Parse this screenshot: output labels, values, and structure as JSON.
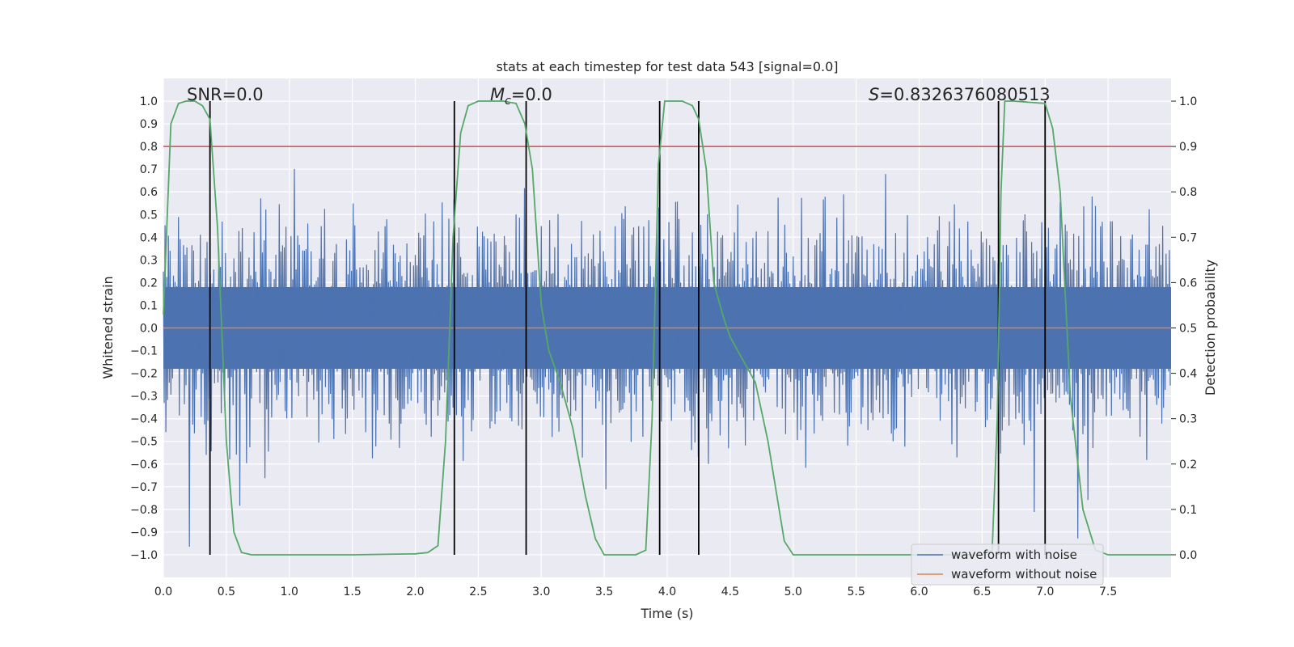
{
  "chart_data": {
    "type": "line",
    "title": "stats at each timestep for test data 543 [signal=0.0]",
    "xlabel": "Time (s)",
    "ylabel": "Whitened strain",
    "ylabel_right": "Detection probability",
    "xlim": [
      0.0,
      8.0
    ],
    "ylim": [
      -1.1,
      1.1
    ],
    "ylim_right": [
      -0.05,
      1.05
    ],
    "x_ticks": [
      0.0,
      0.5,
      1.0,
      1.5,
      2.0,
      2.5,
      3.0,
      3.5,
      4.0,
      4.5,
      5.0,
      5.5,
      6.0,
      6.5,
      7.0,
      7.5
    ],
    "x_tick_labels": [
      "0.0",
      "0.5",
      "1.0",
      "1.5",
      "2.0",
      "2.5",
      "3.0",
      "3.5",
      "4.0",
      "4.5",
      "5.0",
      "5.5",
      "6.0",
      "6.5",
      "7.0",
      "7.5"
    ],
    "y_ticks": [
      -1.0,
      -0.9,
      -0.8,
      -0.7,
      -0.6,
      -0.5,
      -0.4,
      -0.3,
      -0.2,
      -0.1,
      0.0,
      0.1,
      0.2,
      0.3,
      0.4,
      0.5,
      0.6,
      0.7,
      0.8,
      0.9,
      1.0
    ],
    "y_tick_labels": [
      "−1.0",
      "−0.9",
      "−0.8",
      "−0.7",
      "−0.6",
      "−0.5",
      "−0.4",
      "−0.3",
      "−0.2",
      "−0.1",
      "0.0",
      "0.1",
      "0.2",
      "0.3",
      "0.4",
      "0.5",
      "0.6",
      "0.7",
      "0.8",
      "0.9",
      "1.0"
    ],
    "y_right_ticks": [
      0.0,
      0.1,
      0.2,
      0.3,
      0.4,
      0.5,
      0.6,
      0.7,
      0.8,
      0.9,
      1.0
    ],
    "y_right_tick_labels": [
      "0.0",
      "0.1",
      "0.2",
      "0.3",
      "0.4",
      "0.5",
      "0.6",
      "0.7",
      "0.8",
      "0.9",
      "1.0"
    ],
    "annotations": {
      "snr_prefix": "SNR",
      "snr_value": "=0.0",
      "mc_symbol": "M",
      "mc_subscript": "c",
      "mc_value": "=0.0",
      "s_symbol": "S",
      "s_value": "=0.8326376080513"
    },
    "threshold": 0.8,
    "noise_series": {
      "name": "waveform with noise",
      "color": "#4c72b0",
      "num_samples": 1200,
      "core_amplitude": 0.18,
      "typical_peak": 0.62,
      "max_abs": 0.98
    },
    "clean_series": {
      "name": "waveform without noise",
      "color": "#dd8452",
      "value": 0.0
    },
    "probability_series": {
      "name": "detection probability",
      "color": "#55a868",
      "x": [
        0.0,
        0.06,
        0.12,
        0.18,
        0.25,
        0.31,
        0.37,
        0.43,
        0.5,
        0.56,
        0.62,
        0.7,
        1.0,
        1.5,
        2.0,
        2.1,
        2.18,
        2.24,
        2.3,
        2.36,
        2.42,
        2.5,
        2.56,
        2.62,
        2.7,
        2.8,
        2.87,
        2.93,
        3.0,
        3.06,
        3.15,
        3.25,
        3.35,
        3.43,
        3.5,
        3.6,
        3.75,
        3.83,
        3.88,
        3.93,
        3.98,
        4.05,
        4.12,
        4.2,
        4.25,
        4.31,
        4.37,
        4.45,
        4.5,
        4.6,
        4.7,
        4.8,
        4.93,
        5.0,
        5.5,
        6.0,
        6.5,
        6.58,
        6.62,
        6.65,
        6.68,
        6.75,
        7.0,
        7.06,
        7.12,
        7.2,
        7.3,
        7.4,
        7.5,
        8.0
      ],
      "y": [
        0.53,
        0.95,
        0.995,
        1.0,
        1.0,
        0.99,
        0.96,
        0.72,
        0.25,
        0.05,
        0.005,
        0.0,
        0.0,
        0.0,
        0.002,
        0.005,
        0.02,
        0.25,
        0.7,
        0.93,
        0.99,
        1.0,
        1.0,
        1.0,
        1.0,
        0.995,
        0.95,
        0.85,
        0.55,
        0.45,
        0.38,
        0.28,
        0.13,
        0.035,
        0.0,
        0.0,
        0.0,
        0.01,
        0.3,
        0.86,
        1.0,
        1.0,
        1.0,
        0.99,
        0.96,
        0.85,
        0.6,
        0.52,
        0.48,
        0.43,
        0.38,
        0.25,
        0.03,
        0.0,
        0.0,
        0.0,
        0.0,
        0.01,
        0.3,
        0.8,
        1.0,
        1.0,
        0.995,
        0.94,
        0.8,
        0.35,
        0.1,
        0.01,
        0.0,
        0.0
      ]
    },
    "vertical_markers": [
      0.37,
      2.31,
      2.88,
      3.94,
      4.25,
      6.63,
      7.0
    ],
    "legend": {
      "placement": "lower-right",
      "entries": [
        "waveform with noise",
        "waveform without noise"
      ]
    },
    "colors": {
      "background": "#eaeaf2",
      "grid": "#ffffff",
      "threshold": "#c44e52",
      "markers": "#000000",
      "text": "#262626"
    }
  }
}
